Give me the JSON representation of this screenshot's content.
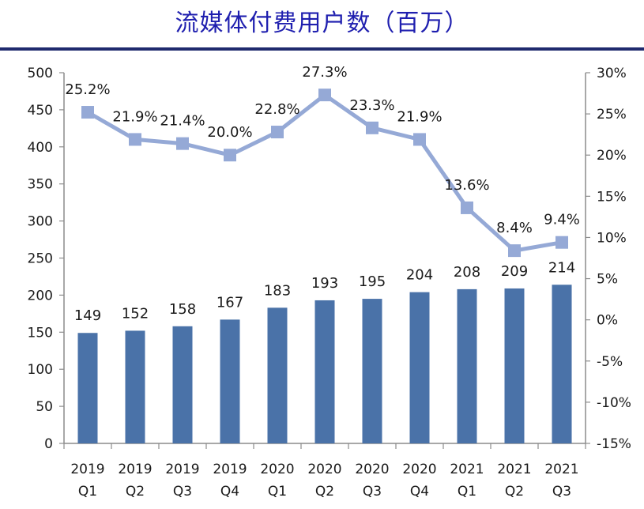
{
  "title": "流媒体付费用户数（百万）",
  "colors": {
    "bar": "#4a72a8",
    "line": "#95a9d6",
    "marker": "#95a9d6",
    "axis": "#8c8c8c",
    "title": "#1f1faf",
    "rule": "#1f2a6e"
  },
  "chart_data": {
    "type": "bar",
    "categories": [
      [
        "2019",
        "Q1"
      ],
      [
        "2019",
        "Q2"
      ],
      [
        "2019",
        "Q3"
      ],
      [
        "2019",
        "Q4"
      ],
      [
        "2020",
        "Q1"
      ],
      [
        "2020",
        "Q2"
      ],
      [
        "2020",
        "Q3"
      ],
      [
        "2020",
        "Q4"
      ],
      [
        "2021",
        "Q1"
      ],
      [
        "2021",
        "Q2"
      ],
      [
        "2021",
        "Q3"
      ]
    ],
    "series": [
      {
        "type": "bar",
        "axis": "left",
        "values": [
          149,
          152,
          158,
          167,
          183,
          193,
          195,
          204,
          208,
          209,
          214
        ],
        "labels": [
          "149",
          "152",
          "158",
          "167",
          "183",
          "193",
          "195",
          "204",
          "208",
          "209",
          "214"
        ]
      },
      {
        "type": "line",
        "axis": "right",
        "values": [
          25.2,
          21.9,
          21.4,
          20.0,
          22.8,
          27.3,
          23.3,
          21.9,
          13.6,
          8.4,
          9.4
        ],
        "labels": [
          "25.2%",
          "21.9%",
          "21.4%",
          "20.0%",
          "22.8%",
          "27.3%",
          "23.3%",
          "21.9%",
          "13.6%",
          "8.4%",
          "9.4%"
        ]
      }
    ],
    "left_axis": {
      "min": 0,
      "max": 500,
      "step": 50,
      "ticks": [
        "0",
        "50",
        "100",
        "150",
        "200",
        "250",
        "300",
        "350",
        "400",
        "450",
        "500"
      ]
    },
    "right_axis": {
      "min": -15,
      "max": 30,
      "step": 5,
      "ticks": [
        "-15%",
        "-10%",
        "-5%",
        "0%",
        "5%",
        "10%",
        "15%",
        "20%",
        "25%",
        "30%"
      ]
    },
    "grid": false,
    "legend": "none"
  }
}
